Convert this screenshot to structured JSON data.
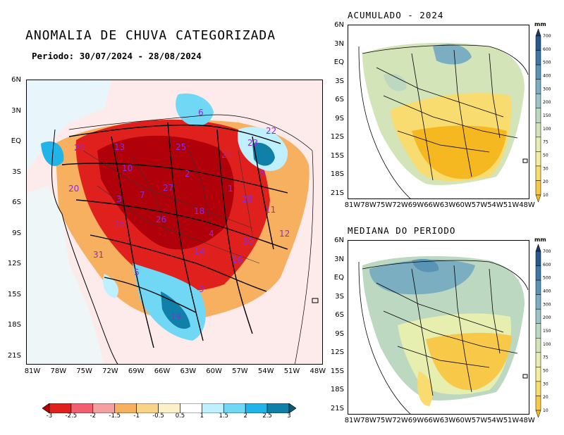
{
  "main": {
    "title": "ANOMALIA DE CHUVA CATEGORIZADA",
    "period": "Periodo: 30/07/2024 - 28/08/2024",
    "y_ticks": [
      "6N",
      "3N",
      "EQ",
      "3S",
      "6S",
      "9S",
      "12S",
      "15S",
      "18S",
      "21S"
    ],
    "x_ticks": [
      "81W",
      "78W",
      "75W",
      "72W",
      "69W",
      "66W",
      "63W",
      "60W",
      "57W",
      "54W",
      "51W",
      "48W"
    ],
    "basin_numbers": [
      {
        "id": "6"
      },
      {
        "id": "22"
      },
      {
        "id": "23"
      },
      {
        "id": "24"
      },
      {
        "id": "13"
      },
      {
        "id": "25"
      },
      {
        "id": "21"
      },
      {
        "id": "10"
      },
      {
        "id": "8"
      },
      {
        "id": "20"
      },
      {
        "id": "2"
      },
      {
        "id": "7"
      },
      {
        "id": "27"
      },
      {
        "id": "1"
      },
      {
        "id": "28"
      },
      {
        "id": "3"
      },
      {
        "id": "18"
      },
      {
        "id": "11"
      },
      {
        "id": "15"
      },
      {
        "id": "26"
      },
      {
        "id": "4"
      },
      {
        "id": "30"
      },
      {
        "id": "12"
      },
      {
        "id": "31"
      },
      {
        "id": "14"
      },
      {
        "id": "16"
      },
      {
        "id": "5"
      },
      {
        "id": "9"
      },
      {
        "id": "19"
      }
    ],
    "colorbar": {
      "labels": [
        "-3",
        "-2.5",
        "-2",
        "-1.5",
        "-1",
        "-0.5",
        "0.5",
        "1",
        "1.5",
        "2",
        "2.5",
        "3"
      ],
      "colors": [
        "#b0000a",
        "#e0201c",
        "#f26070",
        "#f4a0a0",
        "#f6b060",
        "#f8d48a",
        "#fbf0c8",
        "#ffffff",
        "#bff0ff",
        "#70d8f4",
        "#20b4e8",
        "#1080a8",
        "#0a5a74"
      ]
    }
  },
  "acumulado": {
    "title": "ACUMULADO - 2024"
  },
  "mediana": {
    "title": "MEDIANA DO PERIODO"
  },
  "small_y_ticks": [
    "6N",
    "3N",
    "EQ",
    "3S",
    "6S",
    "9S",
    "12S",
    "15S",
    "18S",
    "21S"
  ],
  "small_x_ticks": [
    "81W",
    "78W",
    "75W",
    "72W",
    "69W",
    "66W",
    "63W",
    "60W",
    "57W",
    "54W",
    "51W",
    "48W"
  ],
  "vcolorbar": {
    "unit": "mm",
    "labels": [
      "700",
      "600",
      "500",
      "400",
      "300",
      "200",
      "150",
      "100",
      "75",
      "50",
      "30",
      "20",
      "10"
    ],
    "colors": [
      "#173a6a",
      "#2a5a8c",
      "#3f78a4",
      "#5a94b4",
      "#7aaec0",
      "#9cc4c6",
      "#bcd8c0",
      "#d2e4b8",
      "#e6eeb0",
      "#f4eea0",
      "#f8dc70",
      "#f8c848",
      "#f6b820"
    ]
  }
}
